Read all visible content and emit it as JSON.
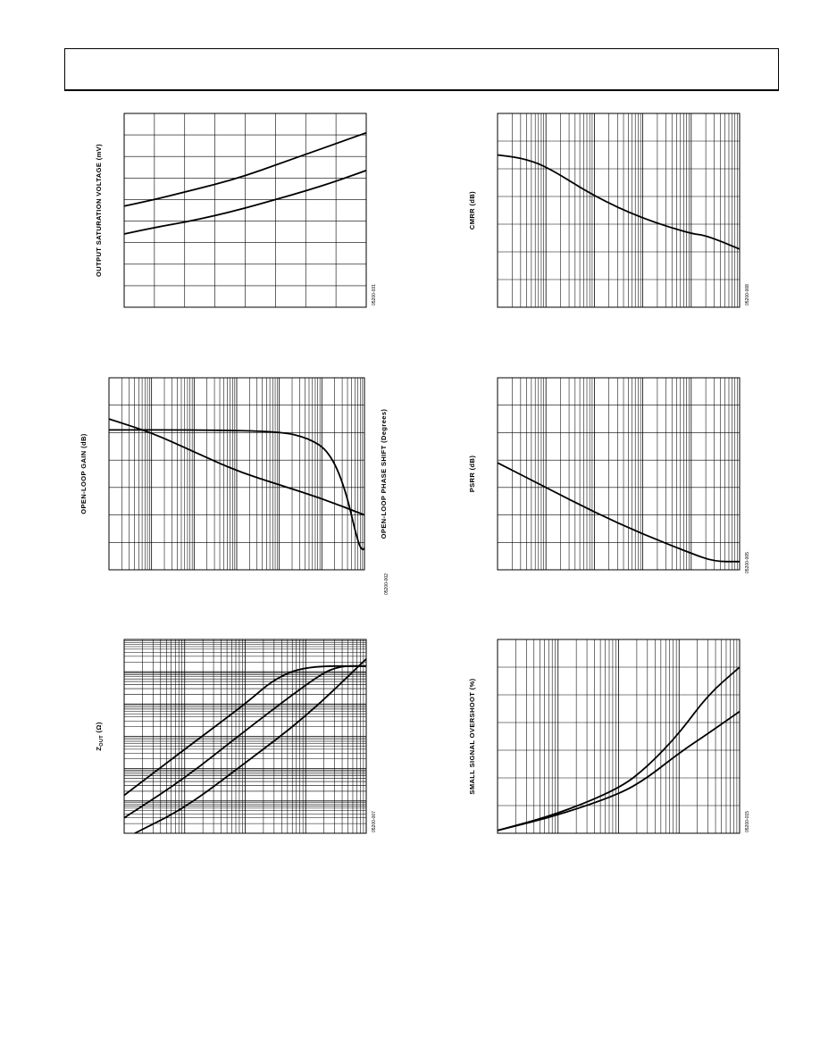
{
  "page": {
    "header": ""
  },
  "charts": [
    {
      "id": "c1",
      "ylabel": "OUTPUT SATURATION VOLTAGE (mV)",
      "ylabel_sub": "",
      "ylabel_tail": "",
      "ylabel2": "",
      "fig_number": "05200-031",
      "chart_data": {
        "type": "line",
        "xscale": "linear",
        "ylim": [
          0,
          9
        ],
        "xlim": [
          0,
          8
        ],
        "grid": true,
        "series": [
          {
            "x": [
              0,
              1,
              2,
              3,
              4,
              5,
              6,
              7,
              8
            ],
            "values": [
              4.7,
              5.0,
              5.35,
              5.7,
              6.1,
              6.6,
              7.1,
              7.6,
              8.1
            ]
          },
          {
            "x": [
              0,
              1,
              2,
              3,
              4,
              5,
              6,
              7,
              8
            ],
            "values": [
              3.4,
              3.7,
              3.95,
              4.25,
              4.6,
              5.0,
              5.4,
              5.85,
              6.35
            ]
          }
        ]
      }
    },
    {
      "id": "c2",
      "ylabel": "CMRR (dB)",
      "ylabel_sub": "",
      "ylabel_tail": "",
      "ylabel2": "",
      "fig_number": "05200-008",
      "chart_data": {
        "type": "line",
        "xscale": "log",
        "xlim": [
          1,
          100000
        ],
        "ylim": [
          0,
          7
        ],
        "grid": true,
        "series": [
          {
            "x": [
              1,
              3,
              10,
              100,
              1000,
              10000,
              20000,
              100000
            ],
            "values": [
              5.5,
              5.4,
              5.1,
              4.0,
              3.2,
              2.65,
              2.6,
              2.1
            ]
          }
        ]
      }
    },
    {
      "id": "c3",
      "ylabel": "OPEN-LOOP GAIN (dB)",
      "ylabel_sub": "",
      "ylabel_tail": "",
      "ylabel2": "OPEN-LOOP PHASE SHIFT (Degrees)",
      "fig_number": "05200-002",
      "chart_data": {
        "type": "line",
        "xscale": "log",
        "xlim": [
          1,
          1000000
        ],
        "ylim": [
          0,
          7
        ],
        "grid": true,
        "series": [
          {
            "x": [
              1,
              10,
              100,
              1000,
              10000,
              100000,
              1000000
            ],
            "values": [
              5.5,
              5.0,
              4.3,
              3.6,
              3.1,
              2.6,
              2.0
            ]
          },
          {
            "x": [
              1,
              100,
              10000,
              50000,
              150000,
              350000,
              700000,
              900000,
              1000000
            ],
            "values": [
              5.1,
              5.1,
              5.05,
              4.8,
              4.3,
              3.0,
              1.0,
              0.7,
              0.8
            ]
          }
        ]
      }
    },
    {
      "id": "c4",
      "ylabel": "PSRR (dB)",
      "ylabel_sub": "",
      "ylabel_tail": "",
      "ylabel2": "",
      "fig_number": "05200-005",
      "chart_data": {
        "type": "line",
        "xscale": "log",
        "xlim": [
          1,
          100000
        ],
        "ylim": [
          0,
          7
        ],
        "grid": true,
        "series": [
          {
            "x": [
              1,
              10,
              100,
              1000,
              10000,
              30000,
              100000
            ],
            "values": [
              3.9,
              3.0,
              2.1,
              1.3,
              0.6,
              0.3,
              0.3
            ]
          }
        ]
      }
    },
    {
      "id": "c5",
      "ylabel": "Z",
      "ylabel_sub": "OUT",
      "ylabel_tail": " (Ω)",
      "ylabel2": "",
      "fig_number": "05200-007",
      "chart_data": {
        "type": "line",
        "xscale": "log",
        "yscale": "log",
        "xlim": [
          1,
          10000
        ],
        "ylim": [
          0.001,
          1000
        ],
        "grid": true,
        "series": [
          {
            "x": [
              1,
              10,
              100,
              300,
              1000,
              10000
            ],
            "values": [
              0.015,
              0.4,
              10,
              60,
              150,
              150
            ]
          },
          {
            "x": [
              1,
              10,
              100,
              1000,
              3000,
              10000
            ],
            "values": [
              0.003,
              0.05,
              1.5,
              40,
              150,
              150
            ]
          },
          {
            "x": [
              1.5,
              10,
              100,
              1000,
              10000
            ],
            "values": [
              0.001,
              0.006,
              0.15,
              4,
              250
            ]
          }
        ]
      }
    },
    {
      "id": "c6",
      "ylabel": "SMALL SIGNAL OVERSHOOT (%)",
      "ylabel_sub": "",
      "ylabel_tail": "",
      "ylabel2": "",
      "fig_number": "05200-015",
      "chart_data": {
        "type": "line",
        "xscale": "log",
        "xlim": [
          1,
          10000
        ],
        "ylim": [
          0,
          7
        ],
        "grid": true,
        "series": [
          {
            "x": [
              1,
              10,
              100,
              300,
              1000,
              3000,
              10000
            ],
            "values": [
              0.1,
              0.7,
              1.6,
              2.4,
              3.6,
              5.0,
              6.0
            ]
          },
          {
            "x": [
              1,
              10,
              100,
              300,
              1000,
              3000,
              10000
            ],
            "values": [
              0.1,
              0.65,
              1.4,
              2.0,
              2.9,
              3.6,
              4.4
            ]
          }
        ]
      }
    }
  ]
}
